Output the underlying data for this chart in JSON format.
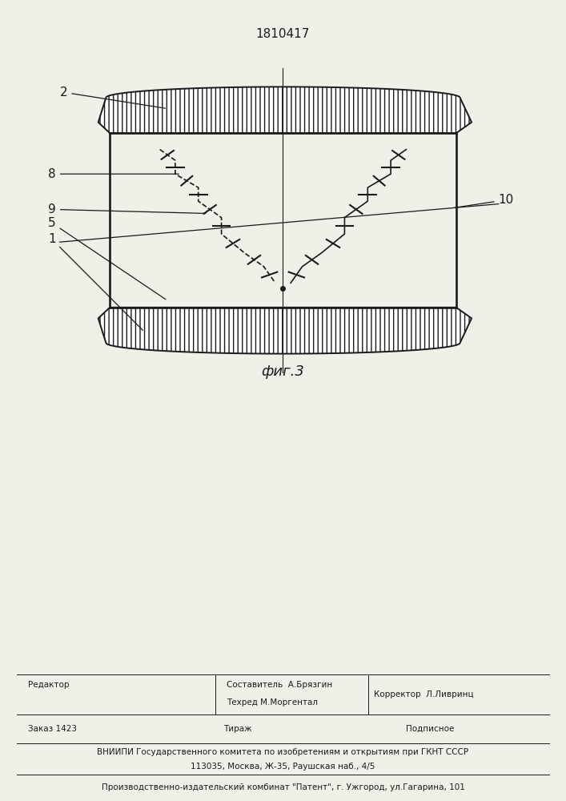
{
  "patent_number": "1810417",
  "fig_label": "фиг.3",
  "bg_color": "#f0efe8",
  "line_color": "#1a1a1a",
  "footer_editor": "Редактор",
  "footer_sostavitel": "Составитель  А.Брязгин",
  "footer_tehred": "Техред М.Моргентал",
  "footer_korrektor": "Корректор  Л.Ливринц",
  "footer_zakaz": "Заказ 1423",
  "footer_tirazh": "Тираж",
  "footer_podpisnoe": "Подписное",
  "footer_vniipи": "ВНИИПИ Государственного комитета по изобретениям и открытиям при ГКНТ СССР",
  "footer_addr": "113035, Москва, Ж-35, Раушская наб., 4/5",
  "footer_proizv": "Производственно-издательский комбинат \"Патент\", г. Ужгород, ул.Гагарина, 101"
}
